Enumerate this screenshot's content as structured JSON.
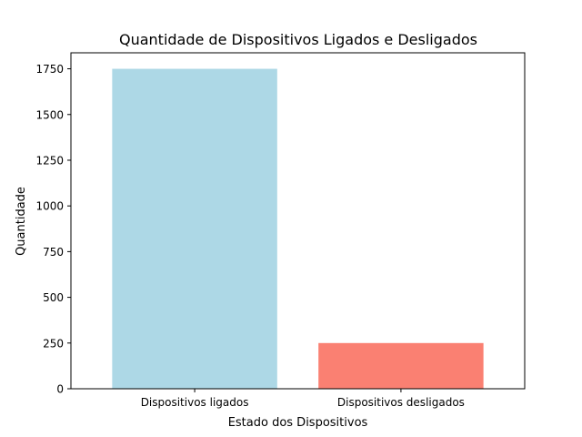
{
  "chart_data": {
    "type": "bar",
    "title": "Quantidade de Dispositivos Ligados e Desligados",
    "xlabel": "Estado dos Dispositivos",
    "ylabel": "Quantidade",
    "categories": [
      "Dispositivos ligados",
      "Dispositivos desligados"
    ],
    "values": [
      1750,
      250
    ],
    "colors": [
      "#add8e6",
      "#fa8072"
    ],
    "ylim": [
      0,
      1837.5
    ],
    "yticks": [
      0,
      250,
      500,
      750,
      1000,
      1250,
      1500,
      1750
    ],
    "grid": false,
    "legend": "none"
  }
}
